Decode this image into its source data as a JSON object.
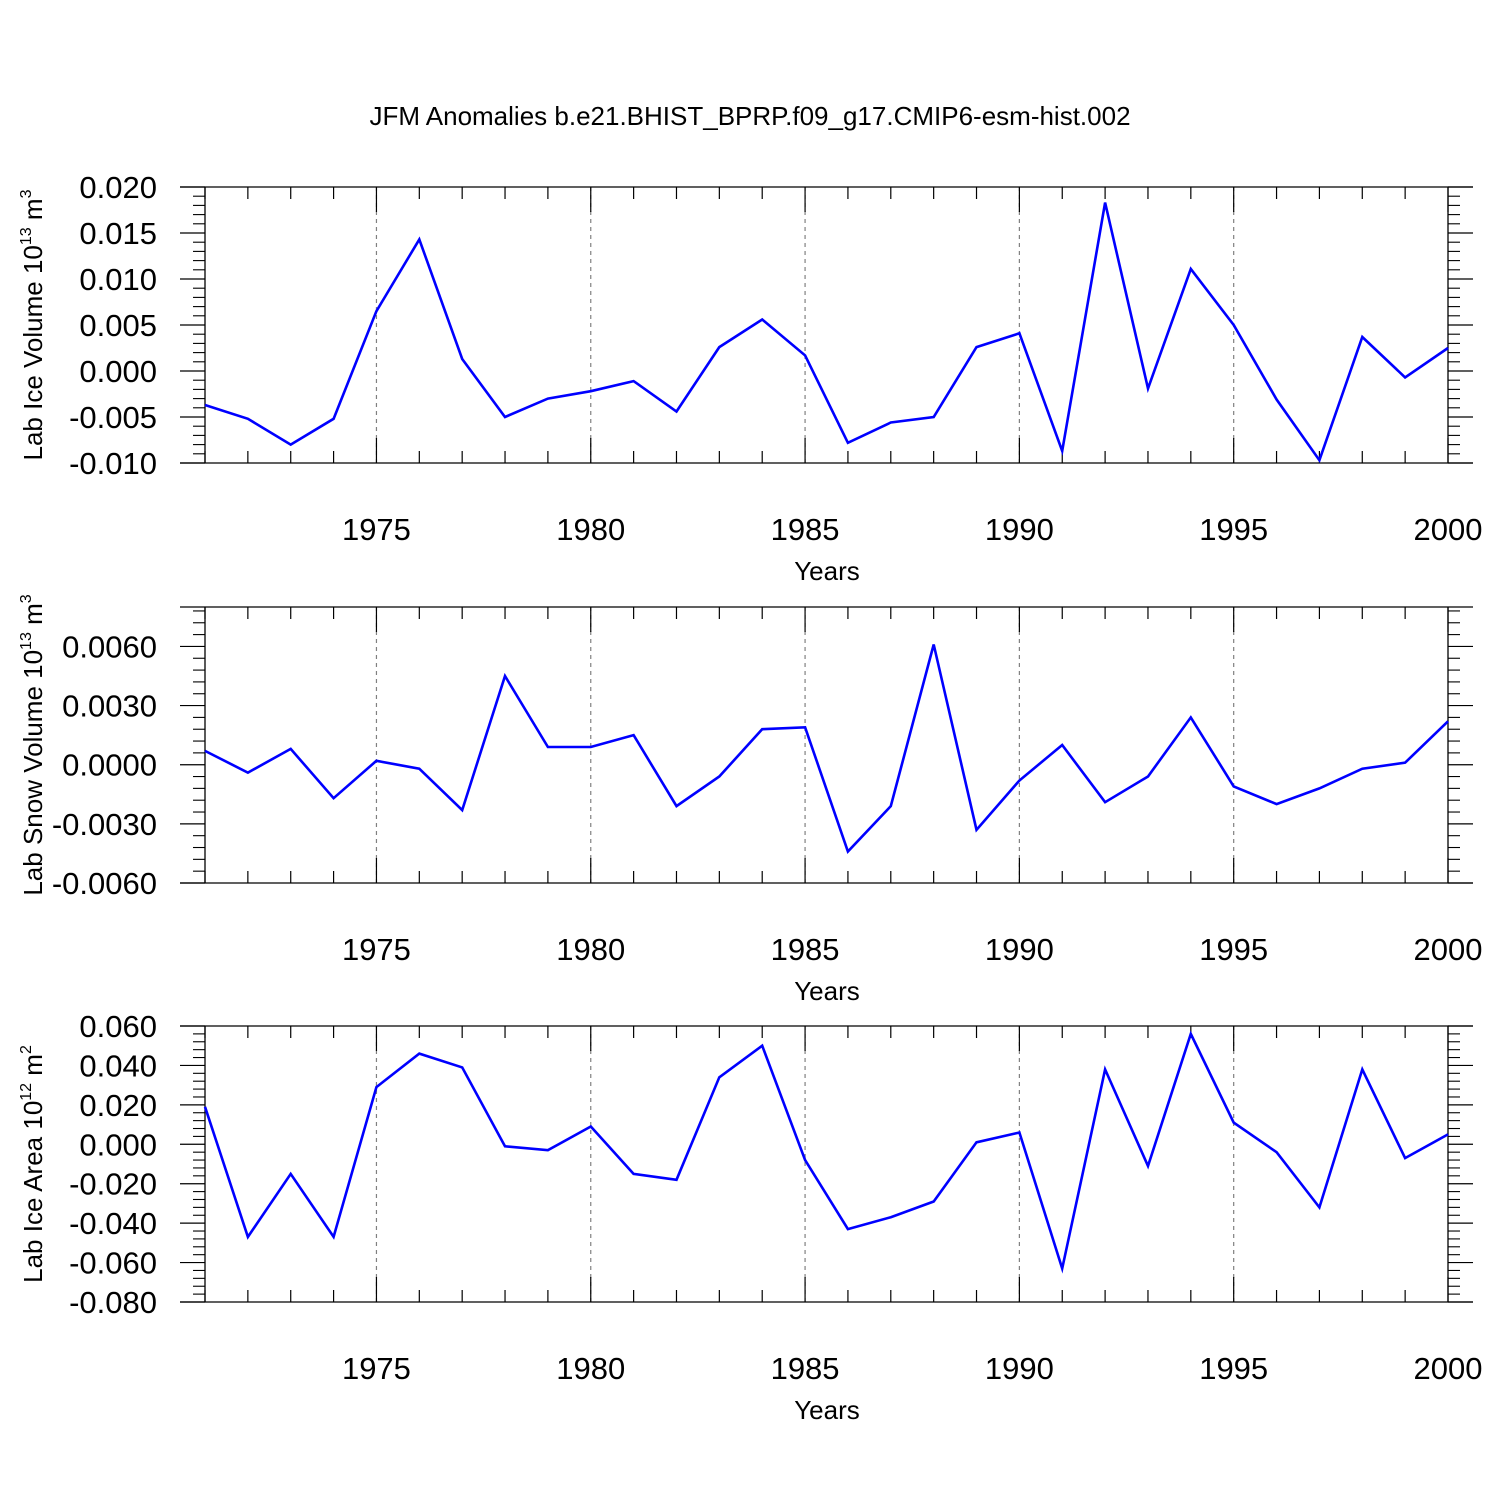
{
  "title": "JFM Anomalies b.e21.BHIST_BPRP.f09_g17.CMIP6-esm-hist.002",
  "colors": {
    "series_line": "#0000ff",
    "axis": "#000000",
    "gridline": "#808080"
  },
  "chart_data": [
    {
      "type": "line",
      "ylabel": "Lab Ice Volume",
      "ylabel_unit": {
        "base": "10",
        "exp": "13",
        "unit": "m",
        "unit_exp": "3"
      },
      "xlabel": "Years",
      "xlim": [
        1971,
        2000
      ],
      "ylim": [
        -0.01,
        0.02
      ],
      "x_ticks": [
        1975,
        1980,
        1985,
        1990,
        1995,
        2000
      ],
      "y_ticks": [
        -0.01,
        -0.005,
        0.0,
        0.005,
        0.01,
        0.015,
        0.02
      ],
      "y_tick_labels": [
        "-0.010",
        "-0.005",
        "0.000",
        "0.005",
        "0.010",
        "0.015",
        "0.020"
      ],
      "grid": "vertical dashed at major x ticks",
      "x": [
        1971,
        1972,
        1973,
        1974,
        1975,
        1976,
        1977,
        1978,
        1979,
        1980,
        1981,
        1982,
        1983,
        1984,
        1985,
        1986,
        1987,
        1988,
        1989,
        1990,
        1991,
        1992,
        1993,
        1994,
        1995,
        1996,
        1997,
        1998,
        1999,
        2000
      ],
      "y": [
        -0.0037,
        -0.0052,
        -0.008,
        -0.0052,
        0.0065,
        0.0143,
        0.0013,
        -0.005,
        -0.003,
        -0.0022,
        -0.0011,
        -0.0044,
        0.0026,
        0.0056,
        0.0017,
        -0.0078,
        -0.0056,
        -0.005,
        0.0026,
        0.0041,
        -0.0087,
        0.0183,
        -0.0019,
        0.0111,
        0.005,
        -0.0031,
        -0.0097,
        0.0037,
        -0.0007,
        0.0025
      ]
    },
    {
      "type": "line",
      "ylabel": "Lab Snow Volume",
      "ylabel_unit": {
        "base": "10",
        "exp": "13",
        "unit": "m",
        "unit_exp": "3"
      },
      "xlabel": "Years",
      "xlim": [
        1971,
        2000
      ],
      "ylim": [
        -0.006,
        0.008
      ],
      "x_ticks": [
        1975,
        1980,
        1985,
        1990,
        1995,
        2000
      ],
      "y_ticks": [
        -0.006,
        -0.003,
        0.0,
        0.003,
        0.006
      ],
      "y_tick_labels": [
        "-0.0060",
        "-0.0030",
        "0.0000",
        "0.0030",
        "0.0060"
      ],
      "grid": "vertical dashed at major x ticks",
      "x": [
        1971,
        1972,
        1973,
        1974,
        1975,
        1976,
        1977,
        1978,
        1979,
        1980,
        1981,
        1982,
        1983,
        1984,
        1985,
        1986,
        1987,
        1988,
        1989,
        1990,
        1991,
        1992,
        1993,
        1994,
        1995,
        1996,
        1997,
        1998,
        1999,
        2000
      ],
      "y": [
        0.0007,
        -0.0004,
        0.0008,
        -0.0017,
        0.0002,
        -0.0002,
        -0.0023,
        0.0045,
        0.0009,
        0.0009,
        0.0015,
        -0.0021,
        -0.0006,
        0.0018,
        0.0019,
        -0.0044,
        -0.0021,
        0.0061,
        -0.0033,
        -0.0008,
        0.001,
        -0.0019,
        -0.0006,
        0.0024,
        -0.0011,
        -0.002,
        -0.0012,
        -0.0002,
        0.0001,
        0.0022
      ]
    },
    {
      "type": "line",
      "ylabel": "Lab Ice Area",
      "ylabel_unit": {
        "base": "10",
        "exp": "12",
        "unit": "m",
        "unit_exp": "2"
      },
      "xlabel": "Years",
      "xlim": [
        1971,
        2000
      ],
      "ylim": [
        -0.08,
        0.06
      ],
      "x_ticks": [
        1975,
        1980,
        1985,
        1990,
        1995,
        2000
      ],
      "y_ticks": [
        -0.08,
        -0.06,
        -0.04,
        -0.02,
        0.0,
        0.02,
        0.04,
        0.06
      ],
      "y_tick_labels": [
        "-0.080",
        "-0.060",
        "-0.040",
        "-0.020",
        "0.000",
        "0.020",
        "0.040",
        "0.060"
      ],
      "grid": "vertical dashed at major x ticks",
      "x": [
        1971,
        1972,
        1973,
        1974,
        1975,
        1976,
        1977,
        1978,
        1979,
        1980,
        1981,
        1982,
        1983,
        1984,
        1985,
        1986,
        1987,
        1988,
        1989,
        1990,
        1991,
        1992,
        1993,
        1994,
        1995,
        1996,
        1997,
        1998,
        1999,
        2000
      ],
      "y": [
        0.019,
        -0.047,
        -0.015,
        -0.047,
        0.029,
        0.046,
        0.039,
        -0.001,
        -0.003,
        0.009,
        -0.015,
        -0.018,
        0.034,
        0.05,
        -0.008,
        -0.043,
        -0.037,
        -0.029,
        0.001,
        0.006,
        -0.063,
        0.038,
        -0.011,
        0.056,
        0.011,
        -0.004,
        -0.032,
        0.038,
        -0.007,
        0.005
      ]
    }
  ]
}
